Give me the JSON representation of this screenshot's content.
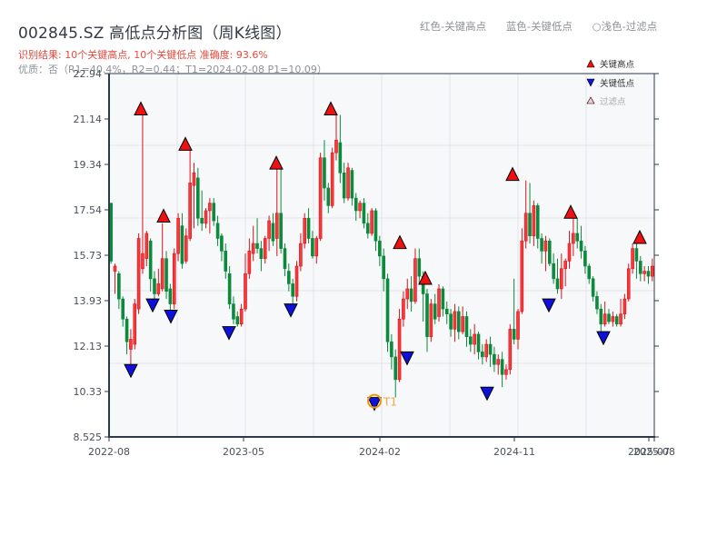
{
  "header": {
    "title": "002845.SZ 高低点分析图（周K线图）",
    "result_line": "识别结果: 10个关键高点, 10个关键低点   准确度: 93.6%",
    "quality_line": "优质：否（R1=40.4%，R2=0.44；T1=2024-02-08 P1=10.09）"
  },
  "top_legend": {
    "red": "红色-关键高点",
    "blue": "蓝色-关键低点",
    "light": "○浅色-过滤点"
  },
  "colors": {
    "up": "#e0101a",
    "down": "#0a8a3a",
    "high_marker": "#ee1111",
    "low_marker": "#1010dd",
    "filtered_marker": "#f9c9c9",
    "t1_ring": "#f0960f",
    "plot_bg": "#f7f8fa",
    "grid": "#e1e4ea",
    "axis": "#2c3a4a"
  },
  "chart_data": {
    "type": "candlestick",
    "title": "002845.SZ 高低点分析图（周K线图）",
    "xlabel": "",
    "ylabel": "",
    "ylim": [
      8.525,
      22.94
    ],
    "y_ticks": [
      "22.94",
      "21.14",
      "19.34",
      "17.54",
      "15.73",
      "13.93",
      "12.13",
      "10.33",
      "8.525"
    ],
    "x_ticks": [
      "2022-08",
      "2023-05",
      "2024-02",
      "2024-11",
      "2025-07",
      "2025-08"
    ],
    "grid": true,
    "legend": {
      "position": "upper right",
      "entries": [
        "关键高点",
        "关键低点",
        "过滤点"
      ]
    },
    "key_highs": [
      {
        "x": 155,
        "price": 21.3
      },
      {
        "x": 180,
        "price": 17.05
      },
      {
        "x": 204,
        "price": 19.9
      },
      {
        "x": 304,
        "price": 19.15
      },
      {
        "x": 364,
        "price": 21.3
      },
      {
        "x": 440,
        "price": 16.0
      },
      {
        "x": 468,
        "price": 14.58
      },
      {
        "x": 564,
        "price": 18.7
      },
      {
        "x": 628,
        "price": 17.2
      },
      {
        "x": 704,
        "price": 16.2
      }
    ],
    "key_lows": [
      {
        "x": 144,
        "price": 11.4
      },
      {
        "x": 168,
        "price": 14.0
      },
      {
        "x": 188,
        "price": 13.55
      },
      {
        "x": 252,
        "price": 12.9
      },
      {
        "x": 320,
        "price": 13.8
      },
      {
        "x": 412,
        "price": 10.09
      },
      {
        "x": 448,
        "price": 11.9
      },
      {
        "x": 536,
        "price": 10.5
      },
      {
        "x": 604,
        "price": 14.0
      },
      {
        "x": 664,
        "price": 12.7
      }
    ],
    "annotation": {
      "label": "T1",
      "x": 412,
      "price": 10.09,
      "date": "2024-02-08"
    },
    "candles": [
      [
        17.8,
        15.5,
        17.8,
        15.4
      ],
      [
        15.1,
        15.3,
        15.4,
        14.2
      ],
      [
        15.0,
        14.0,
        15.1,
        13.6
      ],
      [
        14.0,
        13.2,
        14.1,
        12.9
      ],
      [
        13.2,
        12.3,
        13.3,
        11.8
      ],
      [
        12.0,
        12.4,
        12.8,
        11.4
      ],
      [
        12.2,
        13.8,
        14.0,
        12.0
      ],
      [
        13.6,
        16.4,
        16.6,
        13.4
      ],
      [
        15.2,
        15.8,
        21.3,
        15.0
      ],
      [
        15.6,
        16.6,
        16.7,
        15.3
      ],
      [
        16.3,
        14.8,
        16.4,
        14.3
      ],
      [
        14.8,
        14.2,
        15.1,
        14.0
      ],
      [
        14.2,
        14.6,
        15.2,
        14.1
      ],
      [
        14.4,
        15.6,
        17.0,
        14.3
      ],
      [
        15.6,
        14.3,
        15.9,
        14.0
      ],
      [
        14.4,
        13.8,
        14.6,
        13.55
      ],
      [
        13.8,
        15.8,
        16.0,
        13.6
      ],
      [
        15.8,
        17.2,
        17.4,
        15.5
      ],
      [
        16.9,
        15.4,
        17.4,
        15.2
      ],
      [
        15.5,
        16.5,
        16.8,
        15.4
      ],
      [
        16.4,
        18.6,
        19.9,
        16.3
      ],
      [
        18.5,
        19.0,
        19.4,
        16.8
      ],
      [
        18.8,
        17.2,
        19.2,
        16.9
      ],
      [
        17.2,
        17.0,
        18.3,
        16.7
      ],
      [
        17.0,
        17.5,
        17.6,
        16.8
      ],
      [
        17.5,
        17.8,
        18.0,
        16.6
      ],
      [
        17.8,
        17.1,
        18.0,
        16.9
      ],
      [
        17.0,
        16.4,
        17.3,
        16.1
      ],
      [
        16.5,
        15.9,
        16.6,
        15.5
      ],
      [
        15.9,
        15.1,
        16.2,
        14.8
      ],
      [
        15.0,
        13.8,
        15.3,
        13.6
      ],
      [
        13.8,
        13.2,
        14.1,
        13.0
      ],
      [
        13.3,
        13.0,
        13.5,
        12.9
      ],
      [
        13.0,
        13.6,
        13.8,
        12.9
      ],
      [
        13.6,
        15.0,
        15.8,
        13.5
      ],
      [
        15.0,
        15.9,
        16.4,
        14.8
      ],
      [
        15.8,
        16.2,
        16.9,
        15.5
      ],
      [
        16.2,
        16.0,
        17.2,
        15.8
      ],
      [
        16.0,
        15.6,
        16.3,
        15.1
      ],
      [
        15.6,
        16.4,
        16.5,
        15.4
      ],
      [
        16.4,
        17.1,
        17.3,
        15.9
      ],
      [
        17.0,
        16.3,
        17.4,
        16.1
      ],
      [
        16.4,
        17.4,
        19.2,
        15.7
      ],
      [
        17.4,
        16.0,
        19.15,
        15.8
      ],
      [
        16.0,
        15.2,
        16.2,
        14.9
      ],
      [
        15.1,
        14.6,
        15.4,
        14.3
      ],
      [
        14.6,
        14.1,
        14.8,
        13.8
      ],
      [
        14.1,
        15.3,
        15.5,
        13.9
      ],
      [
        15.3,
        16.2,
        16.6,
        15.1
      ],
      [
        16.2,
        17.2,
        17.4,
        16.0
      ],
      [
        17.2,
        16.4,
        17.6,
        16.2
      ],
      [
        16.4,
        15.7,
        16.7,
        15.6
      ],
      [
        15.7,
        16.4,
        16.5,
        15.4
      ],
      [
        16.4,
        19.6,
        19.8,
        16.3
      ],
      [
        19.6,
        18.4,
        20.3,
        17.9
      ],
      [
        18.4,
        17.7,
        18.6,
        17.4
      ],
      [
        17.7,
        19.8,
        20.0,
        17.6
      ],
      [
        19.8,
        20.3,
        21.3,
        19.5
      ],
      [
        20.2,
        19.0,
        21.3,
        18.6
      ],
      [
        19.0,
        18.0,
        19.4,
        17.8
      ],
      [
        18.0,
        19.2,
        19.4,
        17.9
      ],
      [
        19.1,
        18.0,
        19.2,
        17.7
      ],
      [
        18.0,
        17.5,
        18.2,
        17.1
      ],
      [
        17.5,
        17.8,
        17.9,
        17.2
      ],
      [
        17.8,
        17.0,
        18.0,
        16.8
      ],
      [
        17.0,
        16.6,
        17.4,
        16.4
      ],
      [
        16.6,
        17.5,
        17.6,
        16.5
      ],
      [
        17.5,
        16.3,
        17.6,
        15.9
      ],
      [
        16.3,
        15.7,
        16.5,
        15.3
      ],
      [
        15.7,
        14.8,
        16.0,
        14.3
      ],
      [
        14.8,
        12.3,
        15.0,
        11.9
      ],
      [
        12.3,
        11.7,
        12.6,
        11.2
      ],
      [
        11.7,
        10.8,
        12.0,
        10.09
      ],
      [
        10.8,
        13.2,
        13.6,
        10.7
      ],
      [
        13.2,
        14.0,
        14.3,
        12.9
      ],
      [
        14.0,
        14.4,
        14.8,
        13.6
      ],
      [
        14.4,
        13.9,
        14.9,
        13.5
      ],
      [
        13.9,
        15.6,
        16.0,
        13.8
      ],
      [
        15.6,
        14.9,
        16.0,
        14.6
      ],
      [
        14.9,
        14.2,
        15.1,
        13.1
      ],
      [
        14.2,
        12.5,
        14.4,
        11.9
      ],
      [
        12.5,
        13.8,
        14.0,
        12.3
      ],
      [
        13.8,
        13.2,
        14.2,
        13.0
      ],
      [
        13.3,
        14.4,
        14.58,
        13.1
      ],
      [
        14.4,
        13.6,
        14.5,
        13.3
      ],
      [
        13.6,
        13.4,
        13.9,
        13.0
      ],
      [
        13.4,
        12.8,
        13.6,
        12.5
      ],
      [
        12.8,
        13.5,
        13.8,
        12.3
      ],
      [
        13.5,
        12.7,
        13.7,
        12.4
      ],
      [
        12.7,
        13.3,
        13.7,
        12.6
      ],
      [
        13.3,
        12.5,
        13.5,
        12.1
      ],
      [
        12.5,
        12.2,
        12.8,
        11.9
      ],
      [
        12.2,
        12.6,
        13.0,
        11.8
      ],
      [
        12.6,
        11.9,
        12.7,
        11.6
      ],
      [
        11.9,
        11.7,
        12.2,
        11.4
      ],
      [
        11.7,
        12.2,
        12.4,
        11.5
      ],
      [
        12.2,
        11.8,
        12.5,
        11.3
      ],
      [
        11.8,
        11.4,
        12.1,
        11.1
      ],
      [
        11.4,
        11.6,
        11.8,
        11.0
      ],
      [
        11.6,
        11.0,
        11.9,
        10.5
      ],
      [
        11.0,
        11.2,
        11.4,
        10.8
      ],
      [
        11.2,
        12.8,
        13.0,
        11.0
      ],
      [
        12.8,
        12.4,
        14.8,
        12.2
      ],
      [
        12.4,
        13.5,
        13.6,
        12.0
      ],
      [
        13.5,
        16.3,
        16.8,
        13.4
      ],
      [
        16.3,
        17.4,
        18.7,
        16.0
      ],
      [
        17.4,
        16.5,
        18.6,
        16.2
      ],
      [
        16.5,
        17.7,
        17.9,
        16.1
      ],
      [
        17.7,
        16.4,
        17.8,
        16.0
      ],
      [
        16.4,
        15.9,
        16.6,
        15.4
      ],
      [
        15.9,
        16.3,
        16.5,
        15.1
      ],
      [
        16.3,
        15.4,
        16.4,
        15.3
      ],
      [
        15.4,
        14.8,
        15.8,
        14.6
      ],
      [
        14.8,
        14.4,
        15.6,
        14.2
      ],
      [
        14.4,
        15.2,
        15.8,
        14.0
      ],
      [
        15.2,
        15.5,
        15.6,
        14.5
      ],
      [
        15.5,
        16.2,
        16.7,
        15.2
      ],
      [
        16.2,
        16.6,
        17.2,
        15.7
      ],
      [
        16.6,
        16.3,
        17.2,
        16.0
      ],
      [
        16.3,
        15.9,
        16.9,
        15.6
      ],
      [
        15.9,
        15.3,
        16.1,
        15.0
      ],
      [
        15.3,
        14.8,
        15.4,
        14.6
      ],
      [
        14.8,
        14.1,
        14.9,
        13.9
      ],
      [
        14.1,
        13.6,
        14.3,
        13.4
      ],
      [
        13.6,
        13.0,
        13.8,
        12.7
      ],
      [
        13.0,
        13.4,
        13.9,
        12.9
      ],
      [
        13.4,
        13.1,
        13.6,
        13.0
      ],
      [
        13.1,
        13.3,
        13.5,
        12.9
      ],
      [
        13.3,
        13.0,
        13.4,
        12.9
      ],
      [
        13.0,
        13.4,
        14.0,
        12.9
      ],
      [
        13.4,
        14.0,
        14.2,
        13.2
      ],
      [
        14.0,
        15.2,
        15.4,
        13.9
      ],
      [
        15.2,
        16.0,
        16.2,
        15.0
      ],
      [
        16.0,
        15.5,
        16.2,
        14.8
      ],
      [
        15.5,
        15.0,
        15.7,
        14.7
      ],
      [
        15.0,
        15.1,
        15.3,
        14.7
      ],
      [
        15.1,
        14.9,
        15.3,
        14.6
      ],
      [
        14.9,
        15.3,
        15.6,
        14.7
      ]
    ]
  }
}
